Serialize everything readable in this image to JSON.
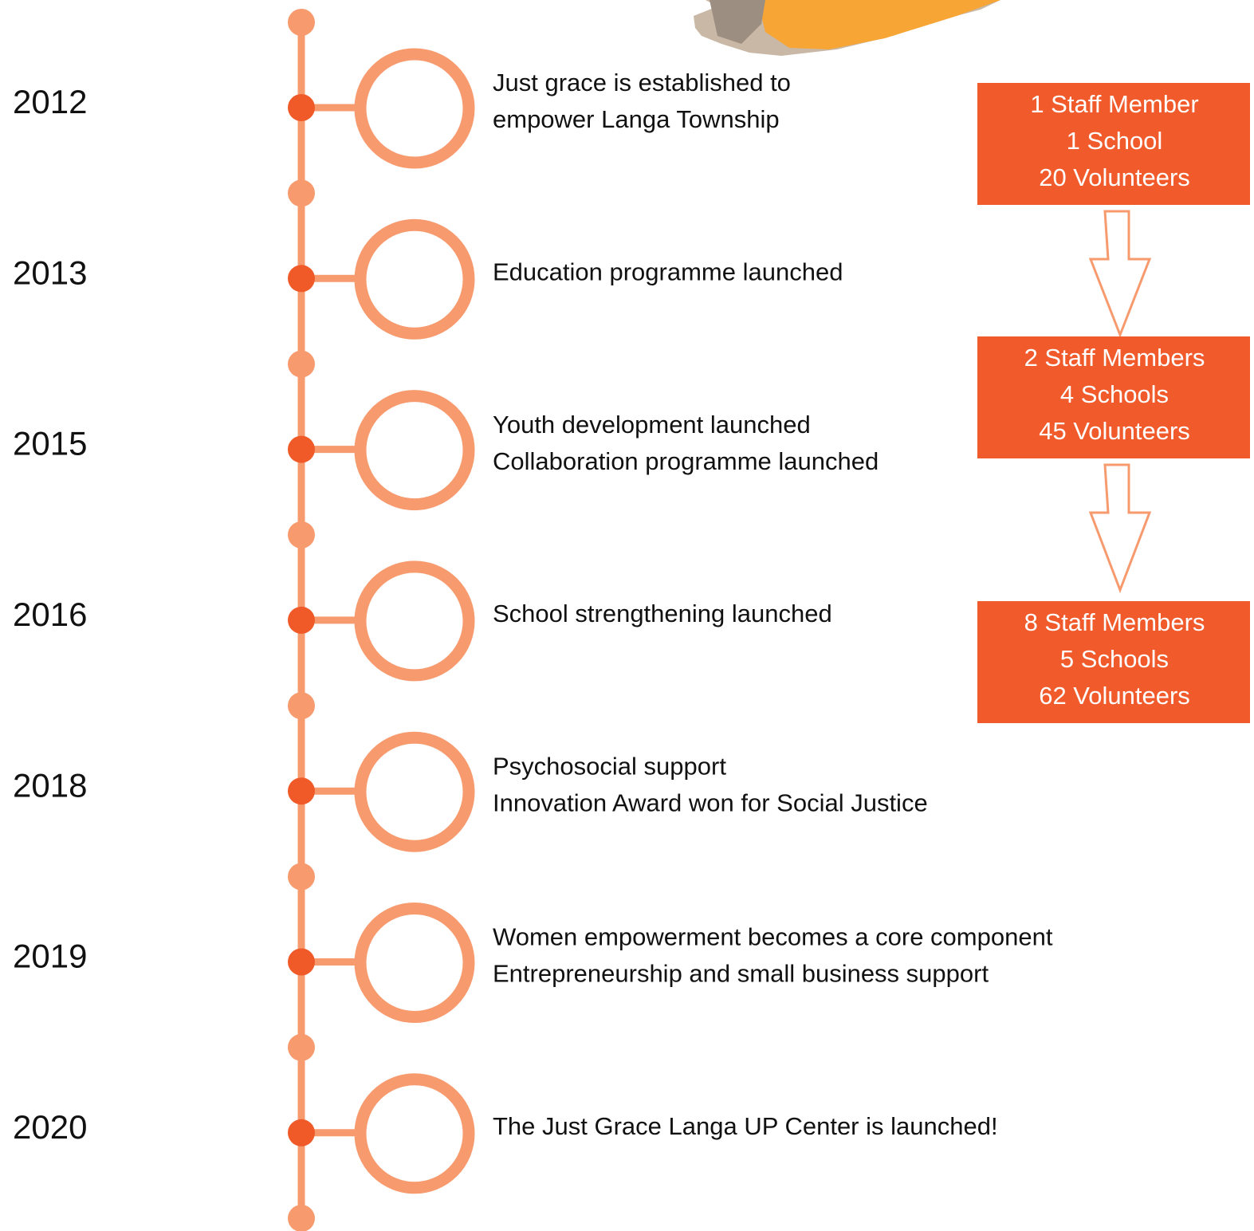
{
  "events": [
    {
      "year": "2012",
      "lines": [
        "Just grace is established to",
        "empower Langa Township"
      ]
    },
    {
      "year": "2013",
      "lines": [
        "Education programme launched"
      ]
    },
    {
      "year": "2015",
      "lines": [
        "Youth development launched",
        "Collaboration programme launched"
      ]
    },
    {
      "year": "2016",
      "lines": [
        "School strengthening launched"
      ]
    },
    {
      "year": "2018",
      "lines": [
        "Psychosocial support",
        "Innovation Award won for Social Justice"
      ]
    },
    {
      "year": "2019",
      "lines": [
        "Women empowerment becomes a core component",
        "Entrepreneurship and small business support"
      ]
    },
    {
      "year": "2020",
      "lines": [
        "The Just Grace Langa UP Center is launched!"
      ]
    }
  ],
  "stats": [
    {
      "lines": [
        "1 Staff Member",
        "1 School",
        "20 Volunteers"
      ]
    },
    {
      "lines": [
        "2 Staff Members",
        "4 Schools",
        "45 Volunteers"
      ]
    },
    {
      "lines": [
        "8 Staff Members",
        "5 Schools",
        "62 Volunteers"
      ]
    }
  ]
}
